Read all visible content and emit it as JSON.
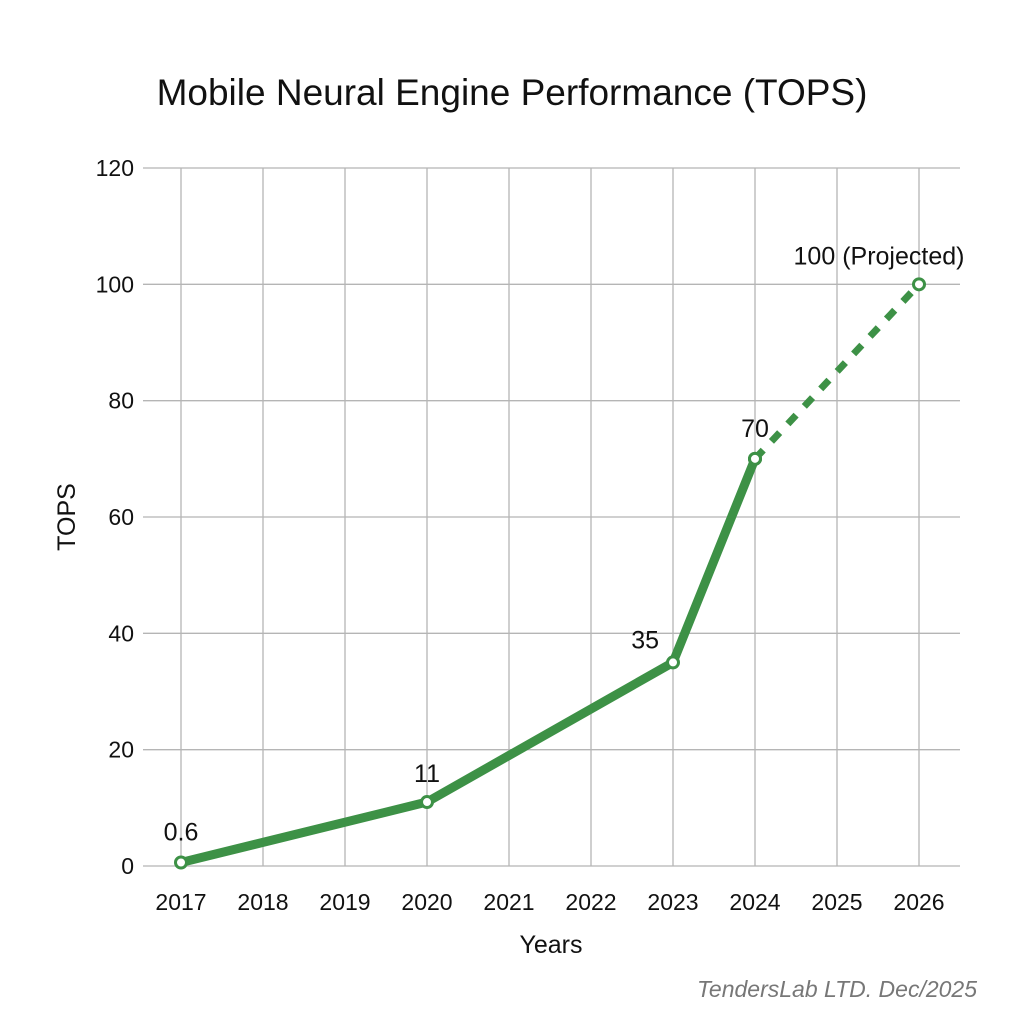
{
  "chart_data": {
    "type": "line",
    "title": "Mobile Neural Engine Performance (TOPS)",
    "xlabel": "Years",
    "ylabel": "TOPS",
    "x_ticks": [
      "2017",
      "2018",
      "2019",
      "2020",
      "2021",
      "2022",
      "2023",
      "2024",
      "2025",
      "2026"
    ],
    "y_ticks": [
      0,
      20,
      40,
      60,
      80,
      100,
      120
    ],
    "ylim": [
      0,
      120
    ],
    "xlim": [
      2017,
      2026
    ],
    "grid": true,
    "series": [
      {
        "style": "solid",
        "color": "#3d9146",
        "points": [
          {
            "x": 2017,
            "y": 0.6,
            "label": "0.6"
          },
          {
            "x": 2020,
            "y": 11,
            "label": "11"
          },
          {
            "x": 2023,
            "y": 35,
            "label": "35"
          },
          {
            "x": 2024,
            "y": 70,
            "label": "70"
          }
        ]
      },
      {
        "style": "dashed",
        "color": "#3d9146",
        "points": [
          {
            "x": 2024,
            "y": 70
          },
          {
            "x": 2026,
            "y": 100,
            "label": "100 (Projected)"
          }
        ]
      }
    ],
    "footnote": "TendersLab LTD. Dec/2025"
  }
}
